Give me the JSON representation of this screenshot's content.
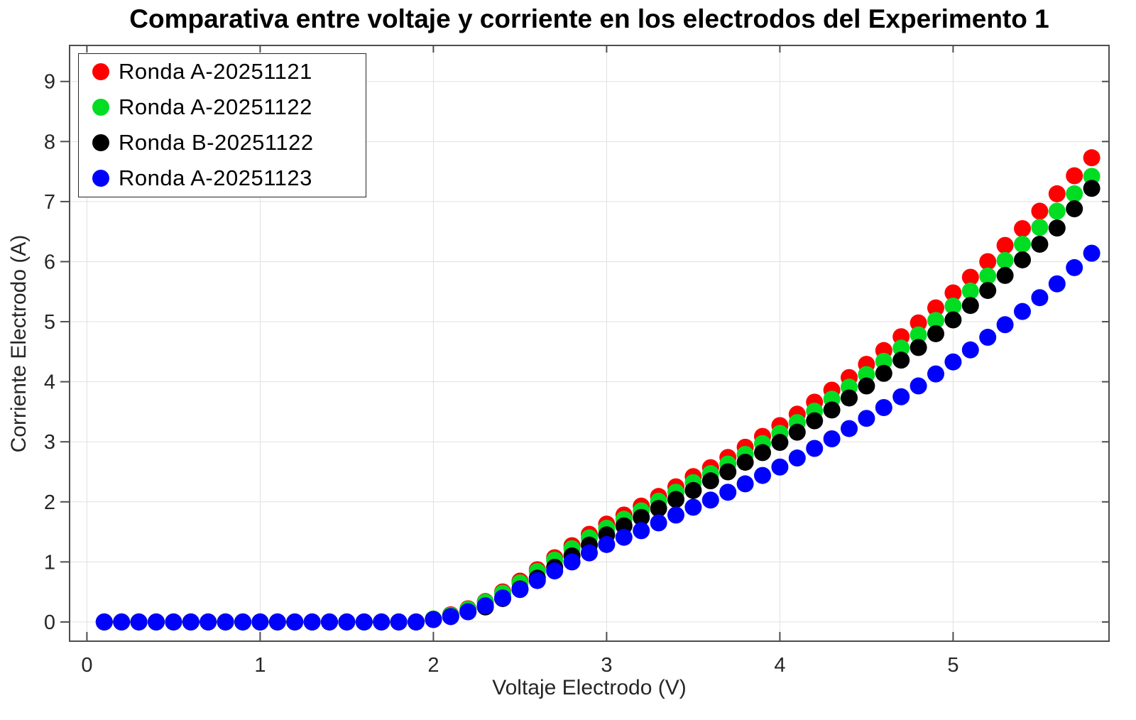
{
  "chart_data": {
    "type": "scatter",
    "title": "Comparativa entre voltaje y corriente en los electrodos del Experimento 1",
    "xlabel": "Voltaje Electrodo (V)",
    "ylabel": "Corriente Electrodo (A)",
    "xlim": [
      -0.1,
      5.9
    ],
    "ylim": [
      -0.32,
      9.6
    ],
    "x_ticks": [
      0,
      1,
      2,
      3,
      4,
      5
    ],
    "y_ticks": [
      0,
      1,
      2,
      3,
      4,
      5,
      6,
      7,
      8,
      9
    ],
    "grid": true,
    "legend_position": "top-left",
    "marker_diameter_px": 24,
    "grid_color": "#e0e0e0",
    "axis_color": "#4d4d4d",
    "text_color": "#262626",
    "x": [
      0.1,
      0.2,
      0.3,
      0.4,
      0.5,
      0.6,
      0.7,
      0.8,
      0.9,
      1.0,
      1.1,
      1.2,
      1.3,
      1.4,
      1.5,
      1.6,
      1.7,
      1.8,
      1.9,
      2.0,
      2.1,
      2.2,
      2.3,
      2.4,
      2.5,
      2.6,
      2.7,
      2.8,
      2.9,
      3.0,
      3.1,
      3.2,
      3.3,
      3.4,
      3.5,
      3.6,
      3.7,
      3.8,
      3.9,
      4.0,
      4.1,
      4.2,
      4.3,
      4.4,
      4.5,
      4.6,
      4.7,
      4.8,
      4.9,
      5.0,
      5.1,
      5.2,
      5.3,
      5.4,
      5.5,
      5.6,
      5.7,
      5.8
    ],
    "series": [
      {
        "name": "Ronda A-20251121",
        "color": "#ff0000",
        "values": [
          0,
          0,
          0,
          0,
          0,
          0,
          0,
          0,
          0,
          0,
          0,
          0,
          0,
          0,
          0,
          0,
          0,
          0,
          0,
          0.05,
          0.12,
          0.22,
          0.34,
          0.5,
          0.68,
          0.87,
          1.07,
          1.27,
          1.46,
          1.63,
          1.78,
          1.93,
          2.09,
          2.25,
          2.42,
          2.57,
          2.74,
          2.91,
          3.09,
          3.27,
          3.46,
          3.66,
          3.86,
          4.07,
          4.29,
          4.52,
          4.75,
          4.98,
          5.23,
          5.48,
          5.74,
          6.0,
          6.27,
          6.55,
          6.84,
          7.13,
          7.43,
          7.73
        ]
      },
      {
        "name": "Ronda A-20251122",
        "color": "#00dd22",
        "values": [
          0,
          0,
          0,
          0,
          0,
          0,
          0,
          0,
          0,
          0,
          0,
          0,
          0,
          0,
          0,
          0,
          0,
          0,
          0,
          0.05,
          0.11,
          0.21,
          0.33,
          0.48,
          0.65,
          0.84,
          1.03,
          1.22,
          1.4,
          1.56,
          1.71,
          1.85,
          2.01,
          2.16,
          2.32,
          2.47,
          2.63,
          2.79,
          2.97,
          3.14,
          3.32,
          3.51,
          3.71,
          3.91,
          4.12,
          4.34,
          4.56,
          4.78,
          5.02,
          5.26,
          5.51,
          5.76,
          6.02,
          6.29,
          6.57,
          6.84,
          7.13,
          7.42
        ]
      },
      {
        "name": "Ronda B-20251122",
        "color": "#000000",
        "values": [
          0,
          0,
          0,
          0,
          0,
          0,
          0,
          0,
          0,
          0,
          0,
          0,
          0,
          0,
          0,
          0,
          0,
          0,
          0,
          0.04,
          0.09,
          0.17,
          0.25,
          0.39,
          0.55,
          0.73,
          0.91,
          1.1,
          1.28,
          1.45,
          1.6,
          1.74,
          1.89,
          2.04,
          2.19,
          2.35,
          2.5,
          2.66,
          2.82,
          2.99,
          3.16,
          3.35,
          3.53,
          3.73,
          3.93,
          4.14,
          4.36,
          4.57,
          4.8,
          5.03,
          5.27,
          5.52,
          5.77,
          6.03,
          6.29,
          6.56,
          6.88,
          7.22
        ]
      },
      {
        "name": "Ronda A-20251123",
        "color": "#0000ff",
        "values": [
          0,
          0,
          0,
          0,
          0,
          0,
          0,
          0,
          0,
          0,
          0,
          0,
          0,
          0,
          0,
          0,
          0,
          0,
          0,
          0.04,
          0.09,
          0.17,
          0.27,
          0.4,
          0.54,
          0.69,
          0.85,
          1.0,
          1.15,
          1.29,
          1.41,
          1.52,
          1.65,
          1.78,
          1.91,
          2.03,
          2.16,
          2.3,
          2.44,
          2.58,
          2.73,
          2.89,
          3.05,
          3.22,
          3.39,
          3.57,
          3.75,
          3.93,
          4.13,
          4.33,
          4.53,
          4.74,
          4.95,
          5.17,
          5.4,
          5.63,
          5.9,
          6.14
        ]
      }
    ]
  }
}
